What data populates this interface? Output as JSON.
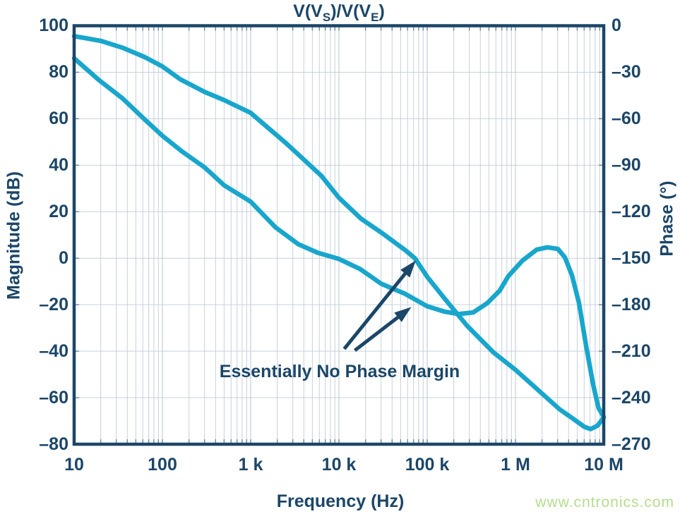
{
  "title": {
    "pre": "V(V",
    "sub1": "S",
    "mid": ")/V(V",
    "sub2": "E",
    "post": ")"
  },
  "watermark": "www.cntronics.com",
  "chart_data": {
    "type": "line",
    "title": "V(V_S)/V(V_E)",
    "xlabel": "Frequency (Hz)",
    "ylabel_left": "Magnitude (dB)",
    "ylabel_right": "Phase (°)",
    "x_scale": "log",
    "x_range_hz": [
      10,
      10000000
    ],
    "x_ticks_hz": [
      10,
      100,
      1000,
      10000,
      100000,
      1000000,
      10000000
    ],
    "x_tick_labels": [
      "10",
      "100",
      "1 k",
      "10 k",
      "100 k",
      "1 M",
      "10 M"
    ],
    "y_left_range": [
      -80,
      100
    ],
    "y_left_ticks": [
      100,
      80,
      60,
      40,
      20,
      0,
      -20,
      -40,
      -60,
      -80
    ],
    "y_left_tick_labels": [
      "100",
      "80",
      "60",
      "40",
      "20",
      "0",
      "–20",
      "–40",
      "–60",
      "–80"
    ],
    "y_right_range": [
      -270,
      0
    ],
    "y_right_ticks": [
      0,
      -30,
      -60,
      -90,
      -120,
      -150,
      -180,
      -210,
      -240,
      -270
    ],
    "y_right_tick_labels": [
      "0",
      "–30",
      "–60",
      "–90",
      "–120",
      "–150",
      "–180",
      "–210",
      "–240",
      "–270"
    ],
    "grid": "log-minor-vertical, 20dB-horizontal",
    "legend": "none",
    "series": [
      {
        "name": "magnitude",
        "unit": "dB",
        "axis": "left",
        "points": [
          [
            1.0,
            95.5
          ],
          [
            1.3,
            93.5
          ],
          [
            1.55,
            90.5
          ],
          [
            1.8,
            86.5
          ],
          [
            2.0,
            82.5
          ],
          [
            2.2,
            77.0
          ],
          [
            2.48,
            71.5
          ],
          [
            2.7,
            68.0
          ],
          [
            3.0,
            62.5
          ],
          [
            3.2,
            56.0
          ],
          [
            3.4,
            49.5
          ],
          [
            3.6,
            42.5
          ],
          [
            3.8,
            35.5
          ],
          [
            4.0,
            26.0
          ],
          [
            4.25,
            17.0
          ],
          [
            4.5,
            10.5
          ],
          [
            4.75,
            3.5
          ],
          [
            4.86,
            0.0
          ],
          [
            5.0,
            -8.0
          ],
          [
            5.2,
            -17.5
          ],
          [
            5.45,
            -29.0
          ],
          [
            5.75,
            -40.5
          ],
          [
            6.0,
            -48.0
          ],
          [
            6.25,
            -56.5
          ],
          [
            6.5,
            -65.0
          ],
          [
            6.65,
            -69.0
          ],
          [
            6.78,
            -72.5
          ],
          [
            6.85,
            -73.5
          ],
          [
            6.93,
            -72.0
          ],
          [
            7.0,
            -68.5
          ]
        ]
      },
      {
        "name": "phase",
        "unit": "deg",
        "axis": "right",
        "points": [
          [
            1.0,
            -21.0
          ],
          [
            1.28,
            -35.0
          ],
          [
            1.55,
            -47.0
          ],
          [
            1.8,
            -60.5
          ],
          [
            2.0,
            -71.0
          ],
          [
            2.22,
            -81.0
          ],
          [
            2.48,
            -91.5
          ],
          [
            2.7,
            -103.0
          ],
          [
            3.0,
            -113.5
          ],
          [
            3.28,
            -130.0
          ],
          [
            3.54,
            -141.0
          ],
          [
            3.76,
            -146.5
          ],
          [
            4.0,
            -150.5
          ],
          [
            4.24,
            -157.0
          ],
          [
            4.48,
            -166.5
          ],
          [
            4.75,
            -173.0
          ],
          [
            5.0,
            -181.0
          ],
          [
            5.2,
            -184.5
          ],
          [
            5.36,
            -186.0
          ],
          [
            5.52,
            -185.0
          ],
          [
            5.68,
            -179.0
          ],
          [
            5.82,
            -171.0
          ],
          [
            5.92,
            -161.5
          ],
          [
            6.08,
            -151.5
          ],
          [
            6.24,
            -144.5
          ],
          [
            6.36,
            -143.0
          ],
          [
            6.48,
            -144.0
          ],
          [
            6.56,
            -149.5
          ],
          [
            6.64,
            -161.0
          ],
          [
            6.72,
            -179.0
          ],
          [
            6.8,
            -206.5
          ],
          [
            6.88,
            -231.5
          ],
          [
            6.94,
            -246.5
          ],
          [
            7.0,
            -252.5
          ]
        ]
      }
    ],
    "annotation": {
      "text": "Essentially No Phase Margin",
      "arrows": [
        {
          "axis": "left",
          "from": [
            4.06,
            -39.0
          ],
          "to": [
            4.87,
            -1.0
          ],
          "points_at": "magnitude 0 dB crossover"
        },
        {
          "axis": "right",
          "from": [
            4.18,
            -209.5
          ],
          "to": [
            4.82,
            -181.5
          ],
          "points_at": "phase at -180°"
        }
      ]
    },
    "colors": {
      "curve": "#18A6CC",
      "axis": "#1B4668",
      "text": "#1B4668",
      "grid_minor": "#C7D1DC",
      "grid_major": "#B7C4D2",
      "tick_stub": "#6A89A2",
      "watermark": "#B5DD8D",
      "background": "#FFFFFF"
    }
  }
}
